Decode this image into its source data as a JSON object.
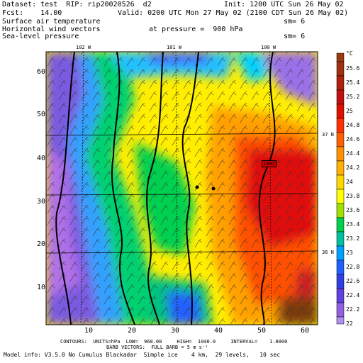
{
  "header": {
    "dataset": "Dataset: test  RIP: rip20020526  d2",
    "init": "Init: 1200 UTC Sun 26 May 02",
    "fcst": "Fcst:    14.00",
    "valid": "Valid: 0200 UTC Mon 27 May 02 (2100 CDT Sun 26 May 02)",
    "field1": "Surface air temperature",
    "field2": "Horizontal wind vectors",
    "field3": "Sea-level pressure",
    "sm1": "sm= 6",
    "pressure": "at pressure =  900 hPa",
    "sm2": "sm= 6"
  },
  "map": {
    "lon_labels": [
      "102 W",
      "101 W",
      "100 W"
    ],
    "lat_labels": [
      "37 N",
      "36 N"
    ],
    "x_ticks": [
      "10",
      "20",
      "30",
      "40",
      "50",
      "60"
    ],
    "y_ticks": [
      "10",
      "20",
      "30",
      "40",
      "50",
      "60"
    ],
    "isobar_label": "1002",
    "colors": {
      "cold": "#8a5ad8",
      "warm": "#d20000"
    }
  },
  "colorbar": {
    "unit": "°C",
    "labels": [
      "25.6",
      "25.4",
      "25.2",
      "25",
      "24.8",
      "24.6",
      "24.4",
      "24.2",
      "24",
      "23.8",
      "23.6",
      "23.4",
      "23.2",
      "23",
      "22.8",
      "22.6",
      "22.4",
      "22.2",
      "22"
    ]
  },
  "footer": {
    "line1": "CONTOURS:  UNITS=hPa  LOW=  960.00     HIGH=  1040.0     INTERVAL=    1.0000",
    "line2": "BARB VECTORS:  FULL BARB = 5 m s⁻¹",
    "line3": "Model info: V3.5.0 No Cumulus Blackadar  Simple ice    4 km,  29 levels,   10 sec"
  }
}
